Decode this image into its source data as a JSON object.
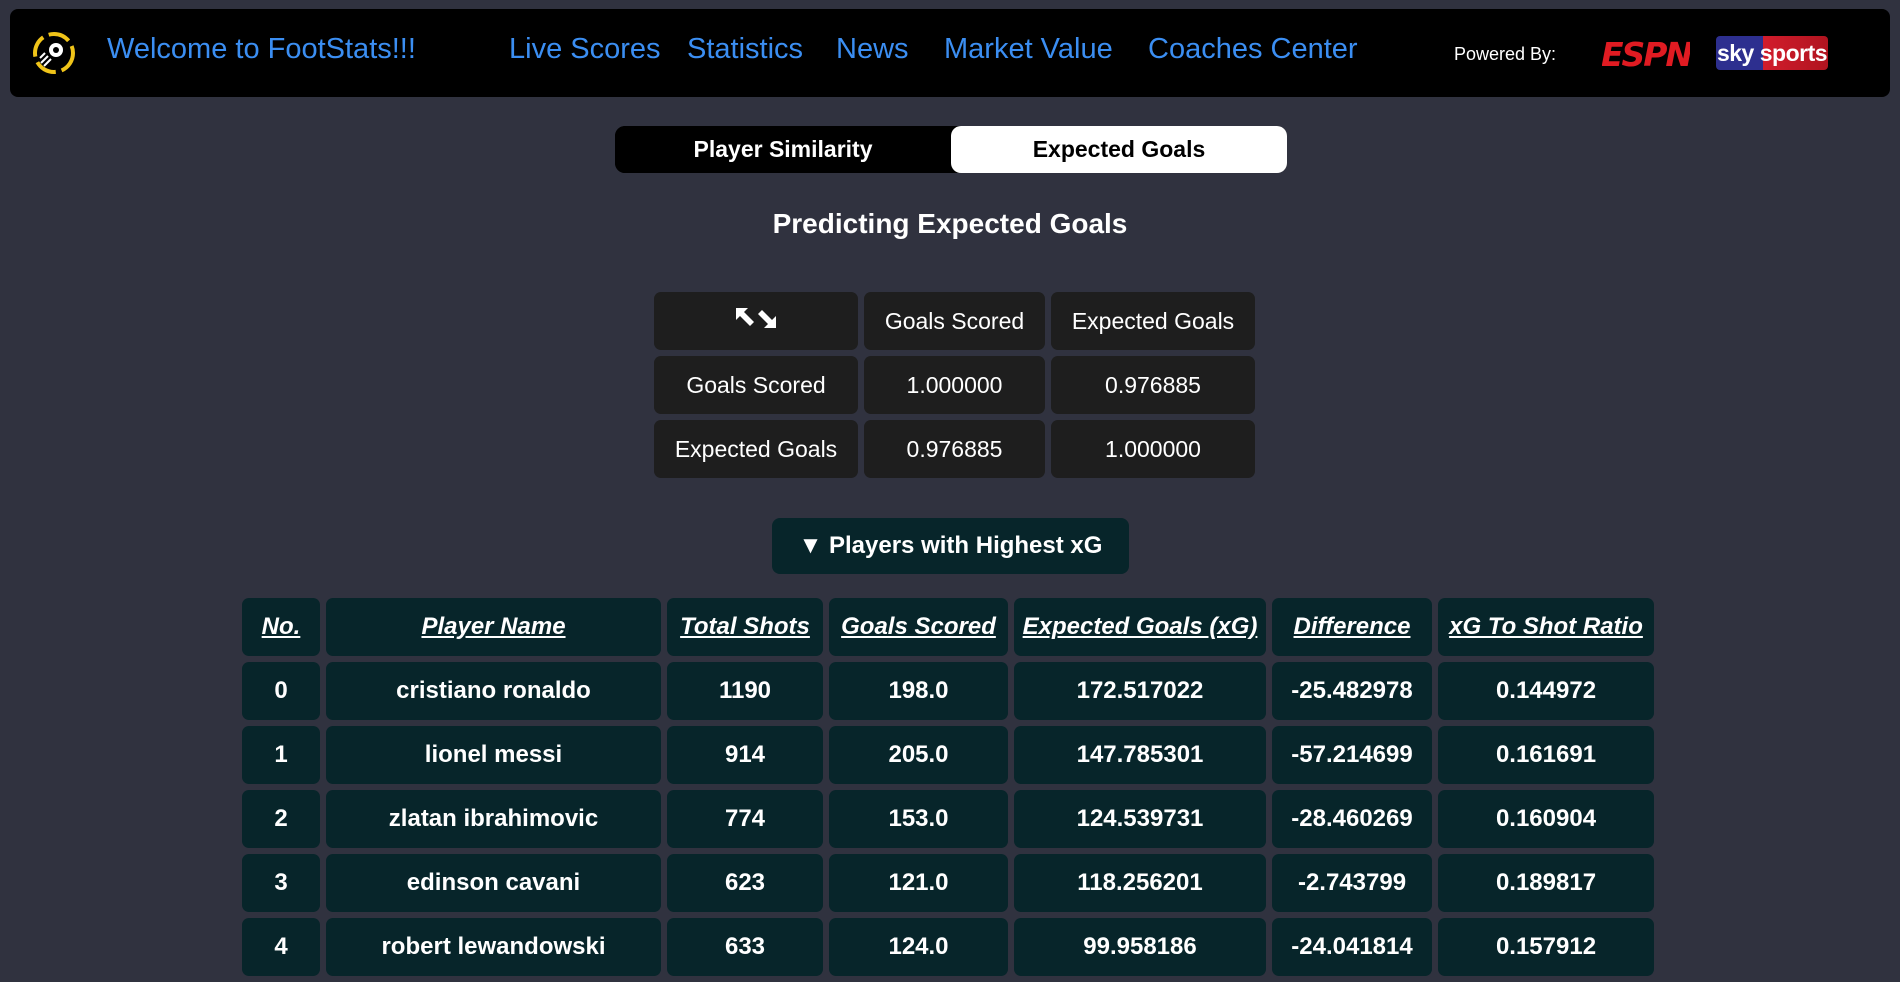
{
  "header": {
    "welcome": "Welcome to FootStats!!!",
    "nav": [
      "Live Scores",
      "Statistics",
      "News",
      "Market Value",
      "Coaches Center"
    ],
    "powered_by": "Powered By:",
    "sponsors": [
      "ESPN",
      "sky sports"
    ]
  },
  "tabs": {
    "player_similarity": "Player Similarity",
    "expected_goals": "Expected Goals",
    "active": "Expected Goals"
  },
  "page_title": "Predicting Expected Goals",
  "correlation": {
    "corner_icon": "expand-arrows-icon",
    "columns": [
      "Goals Scored",
      "Expected Goals"
    ],
    "rows": [
      {
        "label": "Goals Scored",
        "values": [
          "1.000000",
          "0.976885"
        ]
      },
      {
        "label": "Expected Goals",
        "values": [
          "0.976885",
          "1.000000"
        ]
      }
    ]
  },
  "toggle": {
    "label": "▼ Players with Highest xG"
  },
  "players": {
    "columns": [
      "No.",
      "Player Name",
      "Total Shots",
      "Goals Scored",
      "Expected Goals (xG)",
      "Difference",
      "xG To Shot Ratio"
    ],
    "rows": [
      [
        "0",
        "cristiano ronaldo",
        "1190",
        "198.0",
        "172.517022",
        "-25.482978",
        "0.144972"
      ],
      [
        "1",
        "lionel messi",
        "914",
        "205.0",
        "147.785301",
        "-57.214699",
        "0.161691"
      ],
      [
        "2",
        "zlatan ibrahimovic",
        "774",
        "153.0",
        "124.539731",
        "-28.460269",
        "0.160904"
      ],
      [
        "3",
        "edinson cavani",
        "623",
        "121.0",
        "118.256201",
        "-2.743799",
        "0.189817"
      ],
      [
        "4",
        "robert lewandowski",
        "633",
        "124.0",
        "99.958186",
        "-24.041814",
        "0.157912"
      ]
    ]
  },
  "colors": {
    "background": "#30323f",
    "nav_link": "#3b8ef2",
    "table_cell": "#07252a",
    "matrix_cell": "#1e1e1e"
  }
}
